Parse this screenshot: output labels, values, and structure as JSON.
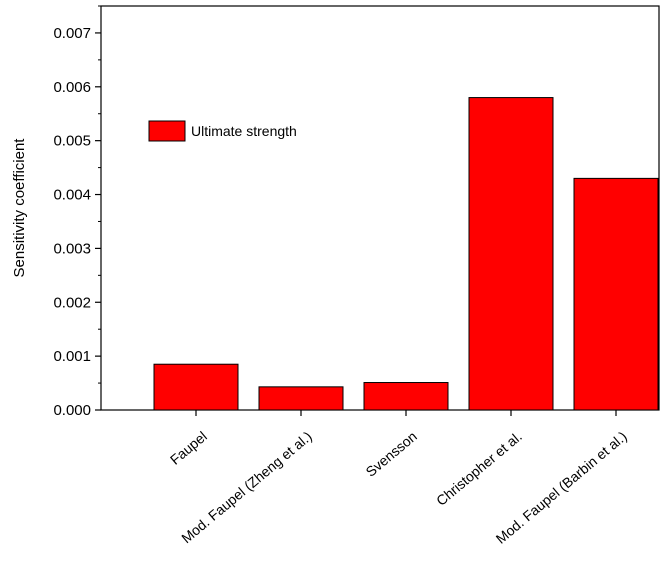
{
  "chart_data": {
    "type": "bar",
    "title": "",
    "xlabel": "",
    "ylabel": "Sensitivity coefficient",
    "ylim": [
      0,
      0.0075
    ],
    "yticks": [
      "0.000",
      "0.001",
      "0.002",
      "0.003",
      "0.004",
      "0.005",
      "0.006",
      "0.007"
    ],
    "categories": [
      "Faupel",
      "Mod. Faupel (Zheng et al.)",
      "Svensson",
      "Christopher et al.",
      "Mod. Faupel (Barbin et al.)"
    ],
    "series": [
      {
        "name": "Ultimate strength",
        "values": [
          0.00085,
          0.00043,
          0.00051,
          0.0058,
          0.0043
        ],
        "color": "#ff0000"
      }
    ],
    "grid": false,
    "legend_position": "top-left"
  }
}
